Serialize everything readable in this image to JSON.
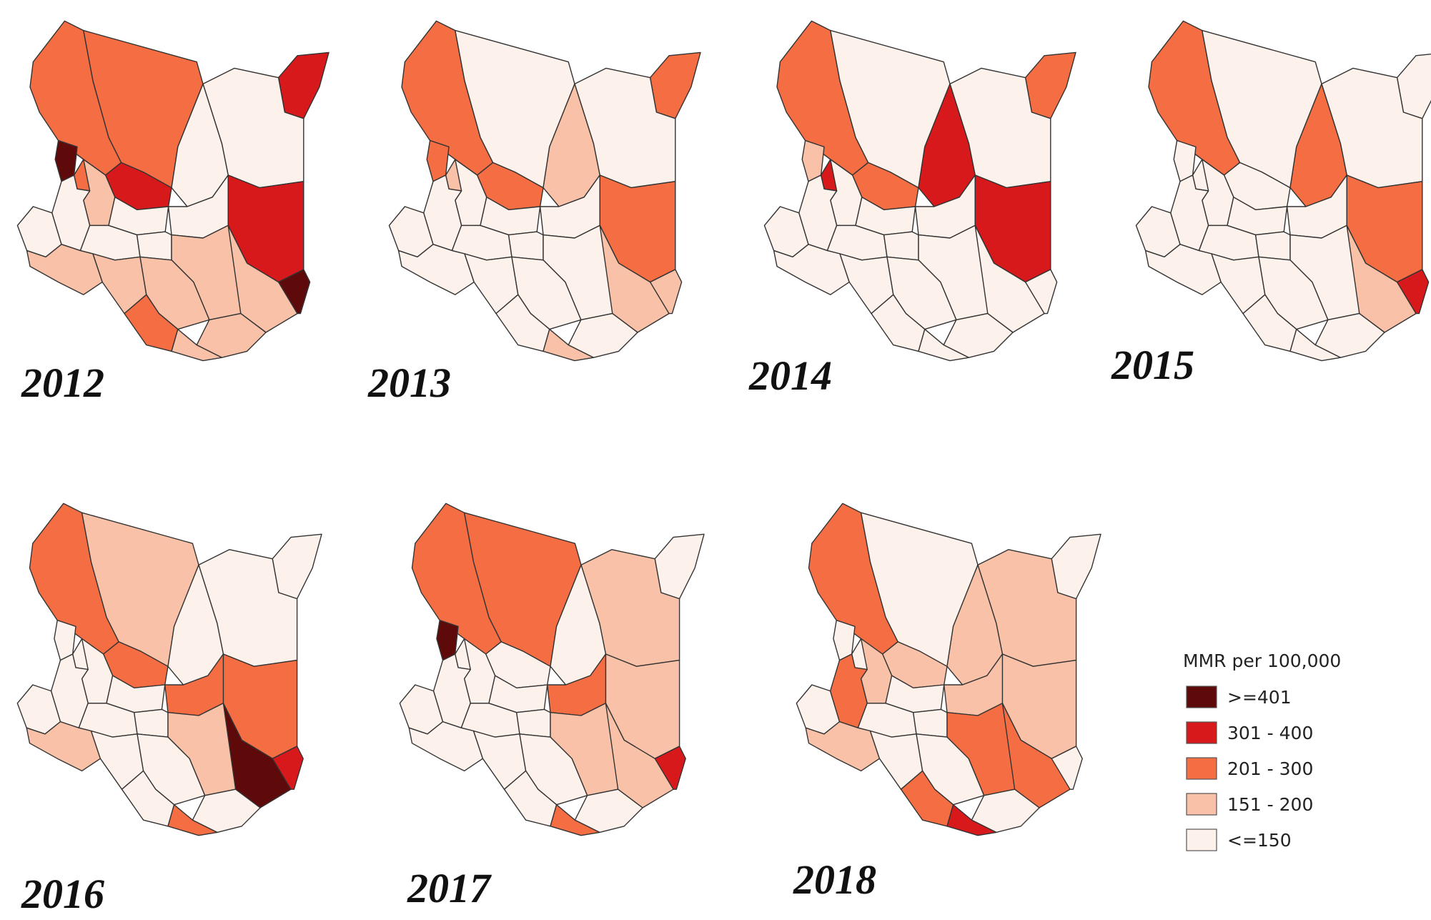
{
  "legend": {
    "title": "MMR per 100,000",
    "classes": [
      {
        "label": ">=401",
        "color": "#5e0a0a"
      },
      {
        "label": "301 - 400",
        "color": "#d7191c"
      },
      {
        "label": "201 - 300",
        "color": "#f46d43"
      },
      {
        "label": "151 - 200",
        "color": "#f9c2a8"
      },
      {
        "label": "<=150",
        "color": "#fdf1ec"
      }
    ]
  },
  "border_color": "#333333",
  "panels": [
    {
      "year": "2012",
      "counties": {
        "turkana": 2,
        "marsabit": 2,
        "mandera": 1,
        "wajir": 4,
        "garissa": 1,
        "tana_river": 3,
        "lamu": 0,
        "samburu": 1,
        "isiolo": 4,
        "west_pokot": 0,
        "baringo": 3,
        "laikipia": 4,
        "meru": 4,
        "kitui": 3,
        "makueni": 3,
        "kajiado": 3,
        "narok": 3,
        "taita_taveta": 2,
        "kwale": 3,
        "kilifi": 3,
        "nakuru": 4,
        "elgeyo": 2,
        "nyanza": 4,
        "central": 4,
        "embu": 4
      }
    },
    {
      "year": "2013",
      "counties": {
        "turkana": 2,
        "marsabit": 4,
        "mandera": 2,
        "wajir": 4,
        "garissa": 2,
        "tana_river": 3,
        "lamu": 3,
        "samburu": 2,
        "isiolo": 3,
        "west_pokot": 2,
        "baringo": 4,
        "laikipia": 4,
        "meru": 4,
        "kitui": 4,
        "makueni": 4,
        "kajiado": 4,
        "narok": 4,
        "taita_taveta": 4,
        "kwale": 3,
        "kilifi": 4,
        "nakuru": 4,
        "elgeyo": 3,
        "nyanza": 4,
        "central": 4,
        "embu": 4
      }
    },
    {
      "year": "2014",
      "counties": {
        "turkana": 2,
        "marsabit": 4,
        "mandera": 2,
        "wajir": 4,
        "garissa": 1,
        "tana_river": 4,
        "lamu": 4,
        "samburu": 2,
        "isiolo": 1,
        "west_pokot": 3,
        "baringo": 4,
        "laikipia": 4,
        "meru": 4,
        "kitui": 4,
        "makueni": 4,
        "kajiado": 4,
        "narok": 4,
        "taita_taveta": 4,
        "kwale": 4,
        "kilifi": 4,
        "nakuru": 4,
        "elgeyo": 1,
        "nyanza": 4,
        "central": 4,
        "embu": 4
      }
    },
    {
      "year": "2015",
      "counties": {
        "turkana": 2,
        "marsabit": 4,
        "mandera": 4,
        "wajir": 4,
        "garissa": 2,
        "tana_river": 3,
        "lamu": 1,
        "samburu": 4,
        "isiolo": 2,
        "west_pokot": 4,
        "baringo": 4,
        "laikipia": 4,
        "meru": 4,
        "kitui": 4,
        "makueni": 4,
        "kajiado": 4,
        "narok": 4,
        "taita_taveta": 4,
        "kwale": 4,
        "kilifi": 4,
        "nakuru": 4,
        "elgeyo": 4,
        "nyanza": 4,
        "central": 4,
        "embu": 4
      }
    },
    {
      "year": "2016",
      "counties": {
        "turkana": 2,
        "marsabit": 3,
        "mandera": 4,
        "wajir": 4,
        "garissa": 2,
        "tana_river": 0,
        "lamu": 1,
        "samburu": 2,
        "isiolo": 4,
        "west_pokot": 4,
        "baringo": 4,
        "laikipia": 4,
        "meru": 2,
        "kitui": 3,
        "makueni": 4,
        "kajiado": 4,
        "narok": 3,
        "taita_taveta": 4,
        "kwale": 2,
        "kilifi": 4,
        "nakuru": 4,
        "elgeyo": 4,
        "nyanza": 4,
        "central": 4,
        "embu": 4
      }
    },
    {
      "year": "2017",
      "counties": {
        "turkana": 2,
        "marsabit": 2,
        "mandera": 4,
        "wajir": 3,
        "garissa": 3,
        "tana_river": 3,
        "lamu": 1,
        "samburu": 4,
        "isiolo": 4,
        "west_pokot": 0,
        "baringo": 4,
        "laikipia": 4,
        "meru": 2,
        "kitui": 3,
        "makueni": 4,
        "kajiado": 4,
        "narok": 4,
        "taita_taveta": 4,
        "kwale": 2,
        "kilifi": 4,
        "nakuru": 4,
        "elgeyo": 4,
        "nyanza": 4,
        "central": 4,
        "embu": 4
      }
    },
    {
      "year": "2018",
      "counties": {
        "turkana": 2,
        "marsabit": 4,
        "mandera": 4,
        "wajir": 3,
        "garissa": 3,
        "tana_river": 2,
        "lamu": 4,
        "samburu": 3,
        "isiolo": 3,
        "west_pokot": 4,
        "baringo": 3,
        "laikipia": 4,
        "meru": 3,
        "kitui": 2,
        "makueni": 4,
        "kajiado": 4,
        "narok": 3,
        "taita_taveta": 2,
        "kwale": 1,
        "kilifi": 4,
        "nakuru": 2,
        "elgeyo": 4,
        "nyanza": 4,
        "central": 4,
        "embu": 4
      }
    }
  ]
}
